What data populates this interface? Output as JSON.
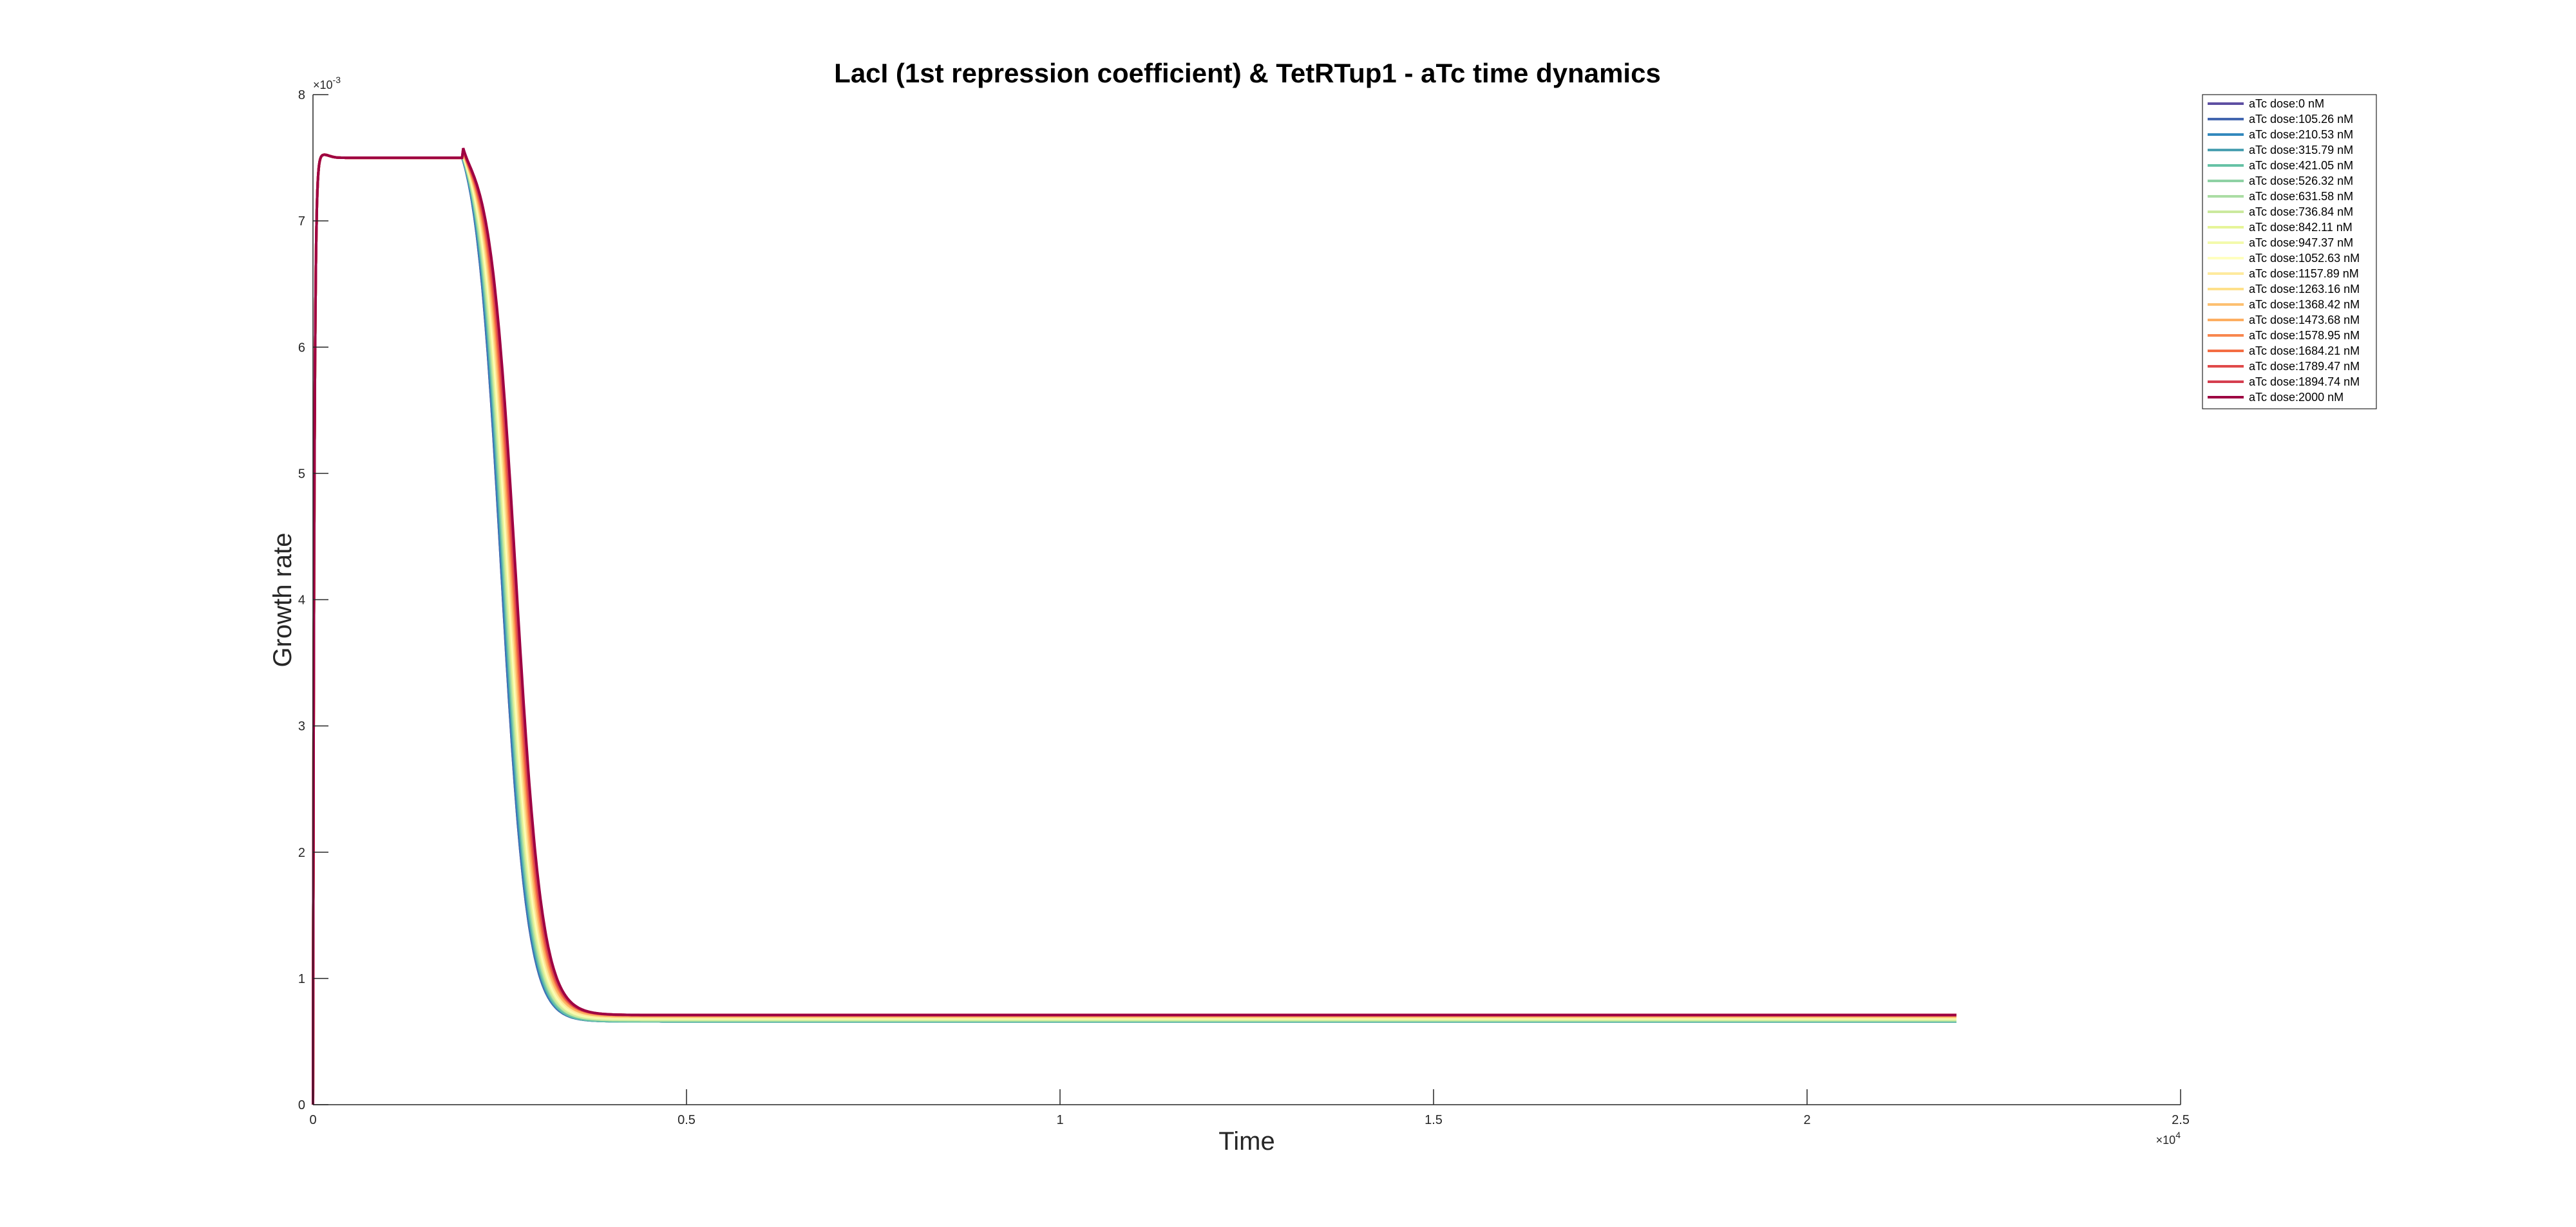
{
  "chart_data": {
    "type": "line",
    "title": "LacI (1st repression coefficient) & TetRTup1 - aTc time dynamics",
    "xlabel": "Time",
    "ylabel": "Growth rate",
    "xlim": [
      0,
      25000
    ],
    "ylim": [
      0,
      0.008
    ],
    "x_ticks": [
      0,
      5000,
      10000,
      15000,
      20000,
      25000
    ],
    "x_tick_labels": [
      "0",
      "0.5",
      "1",
      "1.5",
      "2",
      "2.5"
    ],
    "x_exponent_label": "×10",
    "x_exponent": "4",
    "y_ticks": [
      0,
      0.001,
      0.002,
      0.003,
      0.004,
      0.005,
      0.006,
      0.007,
      0.008
    ],
    "y_tick_labels": [
      "0",
      "1",
      "2",
      "3",
      "4",
      "5",
      "6",
      "7",
      "8"
    ],
    "y_exponent_label": "×10",
    "y_exponent": "-3",
    "grid": false,
    "legend_position": "top-right",
    "series": [
      {
        "name": "aTc dose:0 nM",
        "color": "#5E4FA2",
        "step_time": 2000,
        "shift": 0,
        "final_value": 0.00066
      },
      {
        "name": "aTc dose:105.26 nM",
        "color": "#4366AF",
        "step_time": 2000,
        "shift": 0,
        "final_value": 0.00066
      },
      {
        "name": "aTc dose:210.53 nM",
        "color": "#3288BD",
        "step_time": 2000,
        "shift": 20,
        "final_value": 0.00066
      },
      {
        "name": "aTc dose:315.79 nM",
        "color": "#4BA0B1",
        "step_time": 2000,
        "shift": 40,
        "final_value": 0.00066
      },
      {
        "name": "aTc dose:421.05 nM",
        "color": "#66C2A5",
        "step_time": 2000,
        "shift": 60,
        "final_value": 0.00066
      },
      {
        "name": "aTc dose:526.32 nM",
        "color": "#8ED1A4",
        "step_time": 2000,
        "shift": 80,
        "final_value": 0.00067
      },
      {
        "name": "aTc dose:631.58 nM",
        "color": "#ABDDA4",
        "step_time": 2000,
        "shift": 100,
        "final_value": 0.00067
      },
      {
        "name": "aTc dose:736.84 nM",
        "color": "#CBE99D",
        "step_time": 2000,
        "shift": 120,
        "final_value": 0.00067
      },
      {
        "name": "aTc dose:842.11 nM",
        "color": "#E6F598",
        "step_time": 2000,
        "shift": 140,
        "final_value": 0.00068
      },
      {
        "name": "aTc dose:947.37 nM",
        "color": "#F3FAAC",
        "step_time": 2000,
        "shift": 160,
        "final_value": 0.00068
      },
      {
        "name": "aTc dose:1052.63 nM",
        "color": "#FFFFBF",
        "step_time": 2000,
        "shift": 180,
        "final_value": 0.00069
      },
      {
        "name": "aTc dose:1157.89 nM",
        "color": "#FEEA9E",
        "step_time": 2000,
        "shift": 200,
        "final_value": 0.00069
      },
      {
        "name": "aTc dose:1263.16 nM",
        "color": "#FEE08B",
        "step_time": 2000,
        "shift": 220,
        "final_value": 0.0007
      },
      {
        "name": "aTc dose:1368.42 nM",
        "color": "#FDC071",
        "step_time": 2000,
        "shift": 240,
        "final_value": 0.0007
      },
      {
        "name": "aTc dose:1473.68 nM",
        "color": "#FDAE61",
        "step_time": 2000,
        "shift": 260,
        "final_value": 0.0007
      },
      {
        "name": "aTc dose:1578.95 nM",
        "color": "#F8874F",
        "step_time": 2000,
        "shift": 280,
        "final_value": 0.00071
      },
      {
        "name": "aTc dose:1684.21 nM",
        "color": "#F46D43",
        "step_time": 2000,
        "shift": 300,
        "final_value": 0.00071
      },
      {
        "name": "aTc dose:1789.47 nM",
        "color": "#E04A4A",
        "step_time": 2000,
        "shift": 320,
        "final_value": 0.00071
      },
      {
        "name": "aTc dose:1894.74 nM",
        "color": "#D53E4F",
        "step_time": 2000,
        "shift": 340,
        "final_value": 0.00071
      },
      {
        "name": "aTc dose:2000 nM",
        "color": "#9E0142",
        "step_time": 2000,
        "shift": 360,
        "final_value": 0.00071
      }
    ],
    "plateau_value": 0.0075,
    "end_time": 22000
  }
}
